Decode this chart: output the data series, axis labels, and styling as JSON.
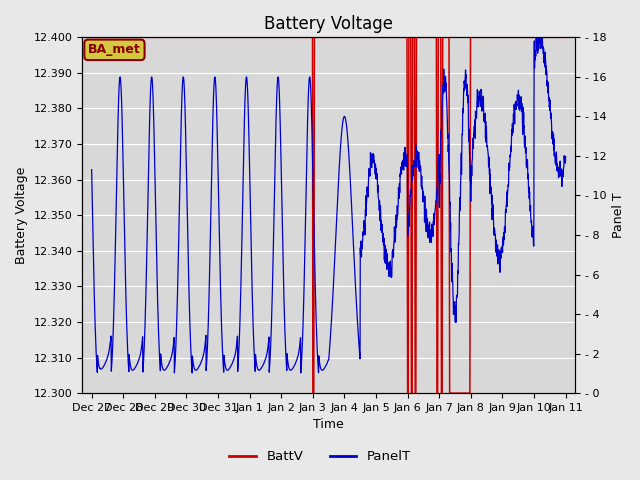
{
  "title": "Battery Voltage",
  "xlabel": "Time",
  "ylabel_left": "Battery Voltage",
  "ylabel_right": "Panel T",
  "ylim_left": [
    12.3,
    12.4
  ],
  "ylim_right": [
    0,
    18
  ],
  "yticks_left": [
    12.3,
    12.31,
    12.32,
    12.33,
    12.34,
    12.35,
    12.36,
    12.37,
    12.38,
    12.39,
    12.4
  ],
  "yticks_right": [
    0,
    2,
    4,
    6,
    8,
    10,
    12,
    14,
    16,
    18
  ],
  "x_tick_labels": [
    "Dec 27",
    "Dec 28",
    "Dec 29",
    "Dec 30",
    "Dec 31",
    "Jan 1",
    "Jan 2",
    "Jan 3",
    "Jan 4",
    "Jan 5",
    "Jan 6",
    "Jan 7",
    "Jan 8",
    "Jan 9",
    "Jan 10",
    "Jan 11"
  ],
  "x_tick_positions": [
    0,
    1,
    2,
    3,
    4,
    5,
    6,
    7,
    8,
    9,
    10,
    11,
    12,
    13,
    14,
    15
  ],
  "xlim": [
    -0.3,
    15.3
  ],
  "bg_color": "#e8e8e8",
  "plot_bg_color": "#d8d8d8",
  "batt_color": "#cc0000",
  "panel_color": "#0000cc",
  "annotation_label": "BA_met",
  "annotation_bg": "#d4c840",
  "annotation_border": "#880000",
  "annotation_text_color": "#880000",
  "title_fontsize": 12,
  "label_fontsize": 9,
  "tick_fontsize": 8
}
